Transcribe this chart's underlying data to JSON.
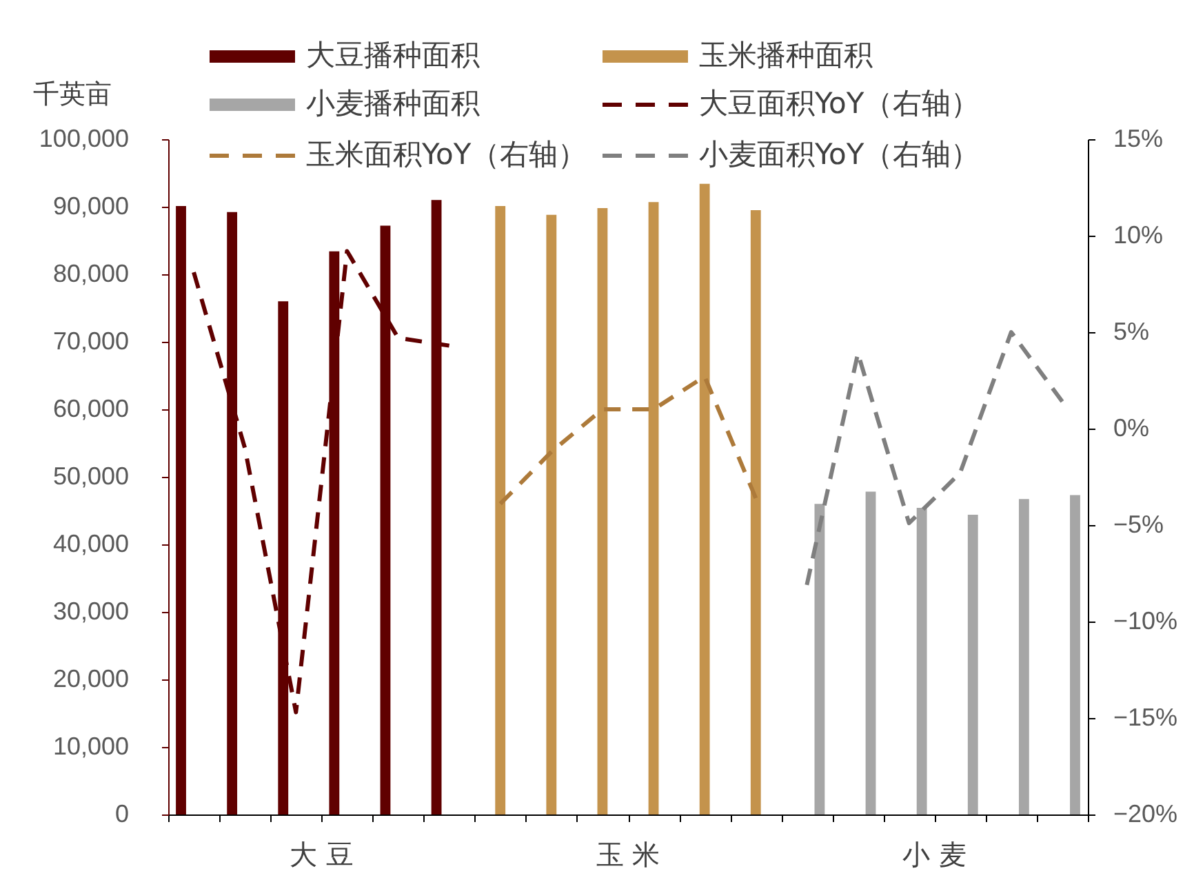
{
  "chart_data": {
    "type": "bar",
    "ylabel": "千英亩",
    "categories": [
      null,
      null,
      null,
      null,
      null,
      null,
      null,
      null,
      null,
      null,
      null,
      null,
      null,
      null,
      null,
      null,
      null,
      null
    ],
    "series": [
      {
        "name": "大豆播种面积",
        "color": "#600000",
        "values": [
          90100,
          89200,
          76000,
          83400,
          87200,
          91000,
          null,
          null,
          null,
          null,
          null,
          null,
          null,
          null,
          null,
          null,
          null,
          null
        ]
      },
      {
        "name": "玉米播种面积",
        "color": "#c4934c",
        "values": [
          null,
          null,
          null,
          null,
          null,
          null,
          90100,
          88800,
          89800,
          90700,
          93400,
          89500,
          null,
          null,
          null,
          null,
          null,
          null
        ]
      },
      {
        "name": "小麦播种面积",
        "color": "#a6a6a6",
        "values": [
          null,
          null,
          null,
          null,
          null,
          null,
          null,
          null,
          null,
          null,
          null,
          null,
          46000,
          47800,
          45400,
          44400,
          46700,
          47300
        ]
      },
      {
        "name": "大豆面积YoY（右轴）",
        "type": "line",
        "axis": "y2",
        "color": "#600000",
        "values": [
          8.1,
          -1.0,
          -14.7,
          9.2,
          4.7,
          4.3,
          null,
          null,
          null,
          null,
          null,
          null,
          null,
          null,
          null,
          null,
          null,
          null
        ]
      },
      {
        "name": "玉米面积YoY（右轴）",
        "type": "line",
        "axis": "y2",
        "color": "#ad7a3a",
        "values": [
          null,
          null,
          null,
          null,
          null,
          null,
          -3.9,
          -1.2,
          1.0,
          1.0,
          2.7,
          -3.6,
          null,
          null,
          null,
          null,
          null,
          null
        ]
      },
      {
        "name": "小麦面积YoY（右轴）",
        "type": "line",
        "axis": "y2",
        "color": "#7f7f7f",
        "values": [
          null,
          null,
          null,
          null,
          null,
          null,
          null,
          null,
          null,
          null,
          null,
          null,
          -8.1,
          3.9,
          -4.9,
          -2.3,
          5.0,
          1.4
        ]
      }
    ],
    "ylim": [
      0,
      100000
    ],
    "yticks": [
      0,
      {
        "value": 10000,
        "label": "10,000"
      },
      {
        "value": 20000,
        "label": "20,000"
      },
      {
        "value": 30000,
        "label": "30,000"
      },
      {
        "value": 40000,
        "label": "40,000"
      },
      {
        "value": 50000,
        "label": "50,000"
      },
      {
        "value": 60000,
        "label": "60,000"
      },
      {
        "value": 70000,
        "label": "70,000"
      },
      {
        "value": 80000,
        "label": "80,000"
      },
      {
        "value": 90000,
        "label": "90,000"
      },
      {
        "value": 100000,
        "label": "100,000"
      }
    ],
    "y2lim": [
      -20,
      15
    ],
    "y2ticks": [
      {
        "value": -20,
        "label": "−20%"
      },
      {
        "value": -15,
        "label": "−15%"
      },
      {
        "value": -10,
        "label": "−10%"
      },
      {
        "value": -5,
        "label": "−5%"
      },
      {
        "value": 0,
        "label": "0%"
      },
      {
        "value": 5,
        "label": "5%"
      },
      {
        "value": 10,
        "label": "10%"
      },
      {
        "value": 15,
        "label": "15%"
      }
    ],
    "annotations": [
      "大 豆",
      "玉 米",
      "小 麦"
    ],
    "legend": "top",
    "line_style": "dashed"
  }
}
